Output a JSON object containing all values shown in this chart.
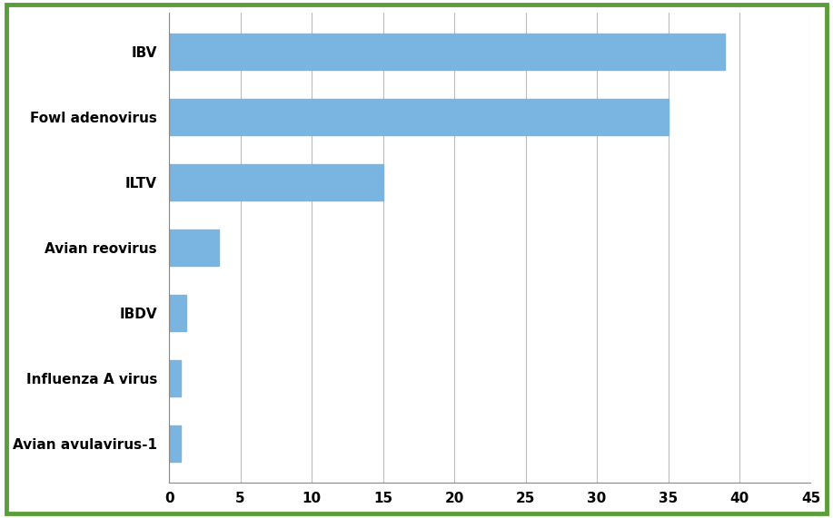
{
  "categories": [
    "Avian avulavirus-1",
    "Influenza A virus",
    "IBDV",
    "Avian reovirus",
    "ILTV",
    "Fowl adenovirus",
    "IBV"
  ],
  "values": [
    0.8,
    0.8,
    1.2,
    3.5,
    15.0,
    35.0,
    39.0
  ],
  "bar_color": "#7ab4e0",
  "xlim": [
    0,
    45
  ],
  "xticks": [
    0,
    5,
    10,
    15,
    20,
    25,
    30,
    35,
    40,
    45
  ],
  "background_color": "#ffffff",
  "outer_border_color": "#5a9e3a",
  "grid_color": "#bbbbbb",
  "bar_height": 0.55,
  "figsize": [
    9.17,
    5.71
  ],
  "dpi": 100,
  "label_fontsize": 11,
  "tick_fontsize": 11,
  "label_fontweight": "bold"
}
